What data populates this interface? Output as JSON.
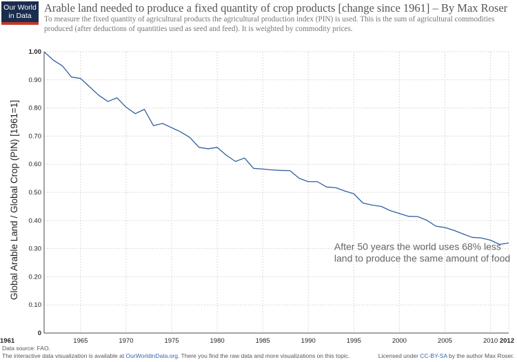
{
  "logo": {
    "line1": "Our World",
    "line2": "in Data"
  },
  "title": "Arable land needed to produce a fixed quantity of crop products [change since 1961] – By Max Roser",
  "subtitle": "To measure the fixed quantity of agricultural products the agricultural production index (PIN) is used. This is the sum of agricultural commodities produced (after deductions of quantities used as seed and feed). It is weighted by commodity prices.",
  "footer": {
    "source": "Data source: FAO.",
    "avail_prefix": "The interactive data visualization is available at ",
    "avail_link": "OurWorldinData.org",
    "avail_suffix": ". There you find the raw data and more visualizations on this topic.",
    "license_prefix": "Licensed under ",
    "license_link": "CC-BY-SA",
    "license_suffix": " by the author Max Roser."
  },
  "colors": {
    "line": "#2f5f9e",
    "grid": "#d9d9d9",
    "annotation": "#666666"
  },
  "chart_data": {
    "type": "line",
    "title": "Arable land needed to produce a fixed quantity of crop products [change since 1961] – By Max Roser",
    "ylabel": "Global Arable Land / Global Crop (PIN) [1961=1]",
    "xlabel": "",
    "xlim": [
      1961,
      2012
    ],
    "ylim": [
      0,
      1
    ],
    "grid": true,
    "x_ticks": [
      {
        "value": 1961,
        "label": "1961",
        "bold": true
      },
      {
        "value": 1965,
        "label": "1965"
      },
      {
        "value": 1970,
        "label": "1970"
      },
      {
        "value": 1975,
        "label": "1975"
      },
      {
        "value": 1980,
        "label": "1980"
      },
      {
        "value": 1985,
        "label": "1985"
      },
      {
        "value": 1990,
        "label": "1990"
      },
      {
        "value": 1995,
        "label": "1995"
      },
      {
        "value": 2000,
        "label": "2000"
      },
      {
        "value": 2005,
        "label": "2005"
      },
      {
        "value": 2010,
        "label": "2010"
      },
      {
        "value": 2012,
        "label": "2012",
        "bold": true
      }
    ],
    "y_ticks": [
      {
        "value": 0,
        "label": "0",
        "bold": true
      },
      {
        "value": 0.1,
        "label": "0.10"
      },
      {
        "value": 0.2,
        "label": "0.20"
      },
      {
        "value": 0.3,
        "label": "0.30"
      },
      {
        "value": 0.4,
        "label": "0.40"
      },
      {
        "value": 0.5,
        "label": "0.50"
      },
      {
        "value": 0.6,
        "label": "0.60"
      },
      {
        "value": 0.7,
        "label": "0.70"
      },
      {
        "value": 0.8,
        "label": "0.80"
      },
      {
        "value": 0.9,
        "label": "0.90"
      },
      {
        "value": 1.0,
        "label": "1.00",
        "bold": true
      }
    ],
    "series": [
      {
        "x": [
          1961,
          1962,
          1963,
          1964,
          1965,
          1966,
          1967,
          1968,
          1969,
          1970,
          1971,
          1972,
          1973,
          1974,
          1975,
          1976,
          1977,
          1978,
          1979,
          1980,
          1981,
          1982,
          1983,
          1984,
          1985,
          1986,
          1987,
          1988,
          1989,
          1990,
          1991,
          1992,
          1993,
          1994,
          1995,
          1996,
          1997,
          1998,
          1999,
          2000,
          2001,
          2002,
          2003,
          2004,
          2005,
          2006,
          2007,
          2008,
          2009,
          2010,
          2011,
          2012
        ],
        "values": [
          1.0,
          0.97,
          0.95,
          0.91,
          0.905,
          0.875,
          0.845,
          0.823,
          0.836,
          0.803,
          0.78,
          0.795,
          0.737,
          0.745,
          0.73,
          0.715,
          0.695,
          0.66,
          0.655,
          0.66,
          0.632,
          0.61,
          0.622,
          0.585,
          0.583,
          0.58,
          0.578,
          0.577,
          0.55,
          0.538,
          0.538,
          0.519,
          0.517,
          0.505,
          0.495,
          0.462,
          0.455,
          0.45,
          0.435,
          0.425,
          0.415,
          0.414,
          0.401,
          0.38,
          0.375,
          0.365,
          0.352,
          0.34,
          0.338,
          0.33,
          0.315,
          0.32
        ]
      }
    ],
    "annotation": {
      "lines": [
        "After 50 years the world uses 68% less",
        "land to produce the same amount of food"
      ],
      "anchor_year": 1993,
      "anchor_value": 0.295
    }
  }
}
